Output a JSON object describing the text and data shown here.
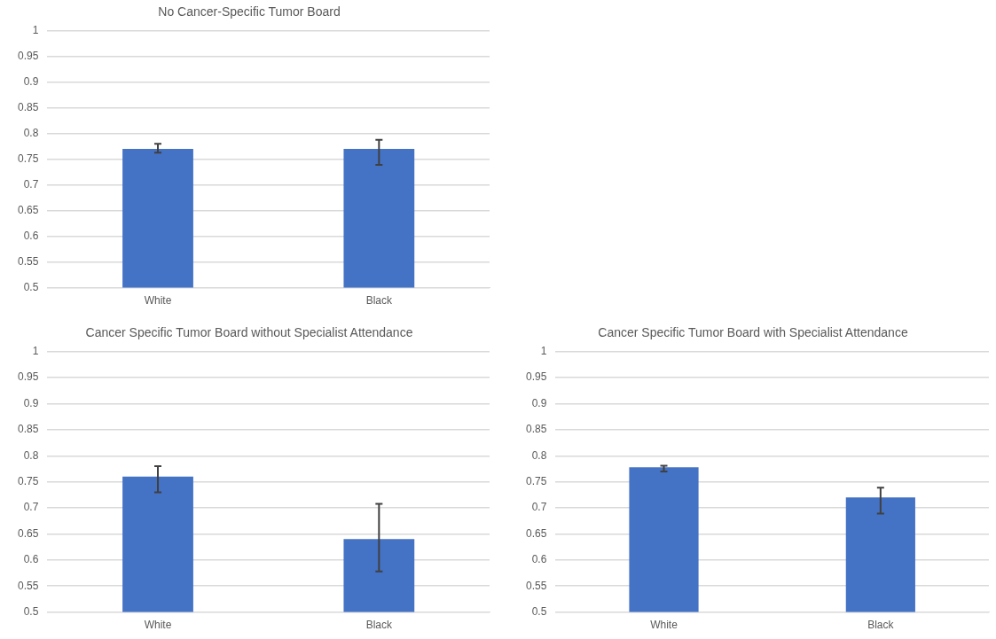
{
  "chart_data": [
    {
      "type": "bar",
      "title": "No Cancer-Specific Tumor Board",
      "categories": [
        "White",
        "Black"
      ],
      "values": [
        0.77,
        0.77
      ],
      "errors": [
        [
          0.763,
          0.78
        ],
        [
          0.739,
          0.788
        ]
      ],
      "color": "#4472c4",
      "ylim": [
        0.5,
        1
      ],
      "yticks": [
        0.5,
        0.55,
        0.6,
        0.65,
        0.7,
        0.75,
        0.8,
        0.85,
        0.9,
        0.95,
        1
      ],
      "grid": "y"
    },
    {
      "type": "bar",
      "title": "Cancer Specific Tumor Board without Specialist Attendance",
      "categories": [
        "White",
        "Black"
      ],
      "values": [
        0.76,
        0.64
      ],
      "errors": [
        [
          0.73,
          0.78
        ],
        [
          0.578,
          0.708
        ]
      ],
      "color": "#4472c4",
      "ylim": [
        0.5,
        1
      ],
      "yticks": [
        0.5,
        0.55,
        0.6,
        0.65,
        0.7,
        0.75,
        0.8,
        0.85,
        0.9,
        0.95,
        1
      ],
      "grid": "y"
    },
    {
      "type": "bar",
      "title": "Cancer Specific Tumor Board with Specialist Attendance",
      "categories": [
        "White",
        "Black"
      ],
      "values": [
        0.778,
        0.72
      ],
      "errors": [
        [
          0.77,
          0.781
        ],
        [
          0.689,
          0.739
        ]
      ],
      "color": "#4472c4",
      "ylim": [
        0.5,
        1
      ],
      "yticks": [
        0.5,
        0.55,
        0.6,
        0.65,
        0.7,
        0.75,
        0.8,
        0.85,
        0.9,
        0.95,
        1
      ],
      "grid": "y"
    }
  ]
}
